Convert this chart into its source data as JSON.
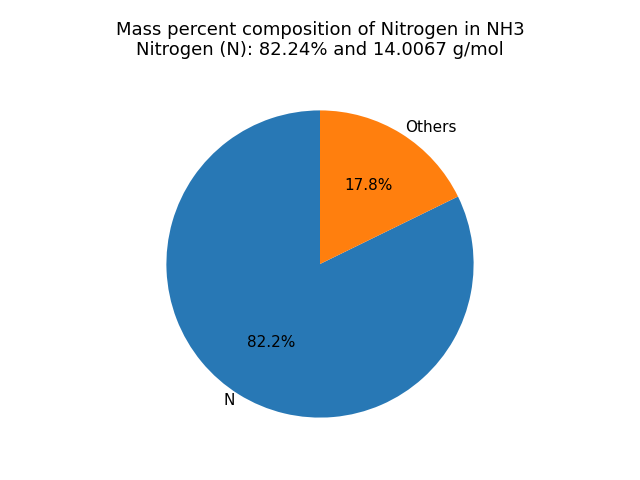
{
  "title_line1": "Mass percent composition of Nitrogen in NH3",
  "title_line2": "Nitrogen (N): 82.24% and 14.0067 g/mol",
  "slices": [
    82.24,
    17.76
  ],
  "labels": [
    "N",
    "Others"
  ],
  "colors": [
    "#2878b5",
    "#ff7f0e"
  ],
  "startangle": 90,
  "background_color": "#ffffff",
  "label_fontsize": 11,
  "autopct_fontsize": 11,
  "title_fontsize": 13
}
